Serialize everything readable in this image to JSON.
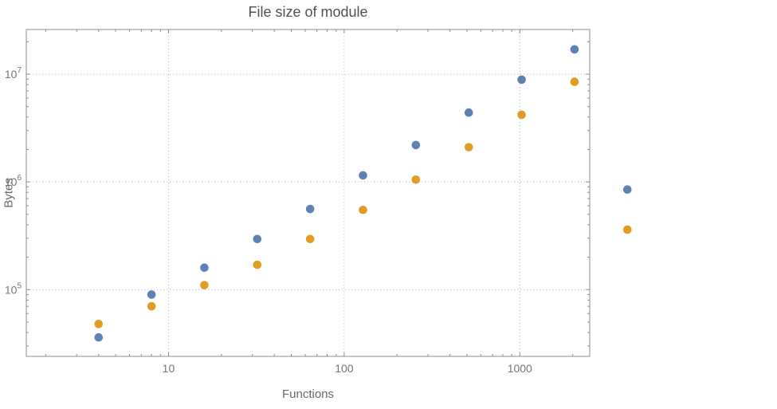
{
  "chart_data": {
    "type": "scatter",
    "title": "File size of module",
    "xlabel": "Functions",
    "ylabel": "Bytes",
    "x_scale": "log",
    "y_scale": "log",
    "xlim": [
      1.55,
      2500
    ],
    "ylim": [
      24000,
      26000000
    ],
    "x_ticks": [
      10,
      100,
      1000
    ],
    "x_tick_labels": [
      "10",
      "100",
      "1000"
    ],
    "y_ticks": [
      100000,
      1000000,
      10000000
    ],
    "y_tick_labels": [
      "10^5",
      "10^6",
      "10^7"
    ],
    "grid": "dotted-at-major-ticks",
    "legend": "none",
    "x": [
      4,
      8,
      16,
      32,
      64,
      128,
      256,
      512,
      1024,
      2048,
      4096
    ],
    "series": [
      {
        "name": "series-blue",
        "color": "#5E82B5",
        "values": [
          36000,
          90000,
          160000,
          295000,
          560000,
          1150000,
          2200000,
          4400000,
          8900000,
          17000000,
          850000
        ]
      },
      {
        "name": "series-orange",
        "color": "#E19C24",
        "values": [
          48000,
          70000,
          110000,
          170000,
          295000,
          550000,
          1050000,
          2100000,
          4200000,
          8500000,
          360000
        ]
      }
    ]
  },
  "style_colors": {
    "frame": "#8c8c8c",
    "grid": "#b3b3b3",
    "tick_text": "#757575",
    "title_text": "#4f4f4f",
    "label_text": "#686868"
  }
}
